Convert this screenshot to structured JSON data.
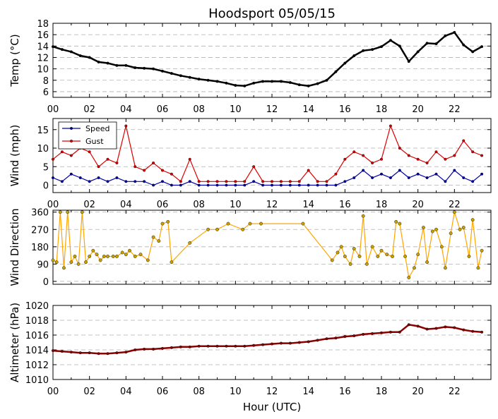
{
  "title": "Hoodsport 05/05/15",
  "xlabel": "Hour (UTC)",
  "x_tick_labels": [
    "00",
    "02",
    "04",
    "06",
    "08",
    "10",
    "12",
    "14",
    "16",
    "18",
    "20",
    "22"
  ],
  "colors": {
    "temp": "#000000",
    "speed": "#0000aa",
    "gust": "#dd0000",
    "direction": "#ffa500",
    "pressure": "#8b0000",
    "grid": "#b0b0b0"
  },
  "chart_data": [
    {
      "type": "line",
      "name": "temperature",
      "ylabel": "Temp (°C)",
      "ylim": [
        5,
        18
      ],
      "yticks": [
        6,
        8,
        10,
        12,
        14,
        16,
        18
      ],
      "xlim": [
        0,
        24
      ],
      "series": [
        {
          "name": "Temperature",
          "color": "#000000",
          "x": [
            0,
            0.5,
            1,
            1.5,
            2,
            2.5,
            3,
            3.5,
            4,
            4.5,
            5,
            5.5,
            6,
            6.5,
            7,
            7.5,
            8,
            8.5,
            9,
            9.5,
            10,
            10.5,
            11,
            11.5,
            12,
            12.5,
            13,
            13.5,
            14,
            14.5,
            15,
            15.5,
            16,
            16.5,
            17,
            17.5,
            18,
            18.5,
            19,
            19.5,
            20,
            20.5,
            21,
            21.5,
            22,
            22.5,
            23,
            23.5
          ],
          "values": [
            13.9,
            13.4,
            13.0,
            12.3,
            12.0,
            11.2,
            11.0,
            10.6,
            10.6,
            10.2,
            10.1,
            10.0,
            9.6,
            9.2,
            8.8,
            8.5,
            8.2,
            8.0,
            7.8,
            7.5,
            7.1,
            7.0,
            7.5,
            7.8,
            7.8,
            7.8,
            7.6,
            7.2,
            7.0,
            7.4,
            8.0,
            9.5,
            11.0,
            12.3,
            13.2,
            13.4,
            13.9,
            15.0,
            14.0,
            11.3,
            13.0,
            14.5,
            14.4,
            15.8,
            16.4,
            14.2,
            13.0,
            13.9
          ]
        }
      ]
    },
    {
      "type": "line",
      "name": "wind",
      "ylabel": "Wind (mph)",
      "ylim": [
        -2,
        18
      ],
      "yticks": [
        0,
        5,
        10,
        15
      ],
      "xlim": [
        0,
        24
      ],
      "legend": {
        "placement": "top-left",
        "entries": [
          "Speed",
          "Gust"
        ]
      },
      "series": [
        {
          "name": "Speed",
          "color": "#0000aa",
          "x": [
            0,
            0.5,
            1,
            1.5,
            2,
            2.5,
            3,
            3.5,
            4,
            4.5,
            5,
            5.5,
            6,
            6.5,
            7,
            7.5,
            8,
            8.5,
            9,
            9.5,
            10,
            10.5,
            11,
            11.5,
            12,
            12.5,
            13,
            13.5,
            14,
            14.5,
            15,
            15.5,
            16,
            16.5,
            17,
            17.5,
            18,
            18.5,
            19,
            19.5,
            20,
            20.5,
            21,
            21.5,
            22,
            22.5,
            23,
            23.5
          ],
          "values": [
            2,
            1,
            3,
            2,
            1,
            2,
            1,
            2,
            1,
            1,
            1,
            0,
            1,
            0,
            0,
            1,
            0,
            0,
            0,
            0,
            0,
            0,
            1,
            0,
            0,
            0,
            0,
            0,
            0,
            0,
            0,
            0,
            1,
            2,
            4,
            2,
            3,
            2,
            4,
            2,
            3,
            2,
            3,
            1,
            4,
            2,
            1,
            3
          ]
        },
        {
          "name": "Gust",
          "color": "#dd0000",
          "x": [
            0,
            0.5,
            1,
            1.5,
            2,
            2.5,
            3,
            3.5,
            4,
            4.5,
            5,
            5.5,
            6,
            6.5,
            7,
            7.5,
            8,
            8.5,
            9,
            9.5,
            10,
            10.5,
            11,
            11.5,
            12,
            12.5,
            13,
            13.5,
            14,
            14.5,
            15,
            15.5,
            16,
            16.5,
            17,
            17.5,
            18,
            18.5,
            19,
            19.5,
            20,
            20.5,
            21,
            21.5,
            22,
            22.5,
            23,
            23.5
          ],
          "values": [
            7,
            9,
            8,
            10,
            9,
            5,
            7,
            6,
            16,
            5,
            4,
            6,
            4,
            3,
            1,
            7,
            1,
            1,
            1,
            1,
            1,
            1,
            5,
            1,
            1,
            1,
            1,
            1,
            4,
            1,
            1,
            3,
            7,
            9,
            8,
            6,
            7,
            16,
            10,
            8,
            7,
            6,
            9,
            7,
            8,
            12,
            9,
            8
          ]
        }
      ]
    },
    {
      "type": "scatter",
      "name": "wind-direction",
      "ylabel": "Wind Direction",
      "ylim": [
        -15,
        370
      ],
      "yticks": [
        0,
        90,
        180,
        270,
        360
      ],
      "xlim": [
        0,
        24
      ],
      "series": [
        {
          "name": "Direction",
          "color": "#ffa500",
          "x": [
            0,
            0.2,
            0.4,
            0.6,
            0.8,
            1.0,
            1.2,
            1.4,
            1.6,
            1.8,
            2.0,
            2.2,
            2.4,
            2.6,
            2.8,
            3.0,
            3.3,
            3.5,
            3.8,
            4.0,
            4.2,
            4.5,
            4.8,
            5.2,
            5.5,
            5.8,
            6.0,
            6.3,
            6.5,
            7.5,
            8.5,
            9.0,
            9.6,
            10.4,
            10.8,
            11.4,
            13.7,
            15.3,
            15.6,
            15.8,
            16.0,
            16.3,
            16.5,
            16.8,
            17.0,
            17.2,
            17.5,
            17.8,
            18.0,
            18.3,
            18.6,
            18.8,
            19.0,
            19.3,
            19.5,
            19.8,
            20.0,
            20.3,
            20.5,
            20.8,
            21.0,
            21.3,
            21.5,
            21.8,
            22.0,
            22.3,
            22.5,
            22.8,
            23.0,
            23.3,
            23.5
          ],
          "values": [
            110,
            100,
            360,
            70,
            360,
            100,
            130,
            90,
            360,
            100,
            130,
            160,
            140,
            110,
            130,
            130,
            130,
            130,
            150,
            140,
            160,
            130,
            140,
            110,
            230,
            210,
            300,
            310,
            100,
            200,
            270,
            270,
            300,
            270,
            300,
            300,
            300,
            110,
            150,
            180,
            130,
            90,
            170,
            130,
            340,
            90,
            180,
            130,
            160,
            140,
            130,
            310,
            300,
            130,
            20,
            70,
            140,
            280,
            100,
            260,
            270,
            180,
            70,
            250,
            360,
            270,
            280,
            130,
            320,
            70,
            160
          ]
        }
      ]
    },
    {
      "type": "line",
      "name": "altimeter",
      "ylabel": "Altimeter (hPa)",
      "ylim": [
        1010,
        1020
      ],
      "yticks": [
        1010,
        1012,
        1014,
        1016,
        1018,
        1020
      ],
      "xlim": [
        0,
        24
      ],
      "series": [
        {
          "name": "Altimeter",
          "color": "#8b0000",
          "x": [
            0,
            0.5,
            1,
            1.5,
            2,
            2.5,
            3,
            3.5,
            4,
            4.5,
            5,
            5.5,
            6,
            6.5,
            7,
            7.5,
            8,
            8.5,
            9,
            9.5,
            10,
            10.5,
            11,
            11.5,
            12,
            12.5,
            13,
            13.5,
            14,
            14.5,
            15,
            15.5,
            16,
            16.5,
            17,
            17.5,
            18,
            18.5,
            19,
            19.5,
            20,
            20.5,
            21,
            21.5,
            22,
            22.5,
            23,
            23.5
          ],
          "values": [
            1013.9,
            1013.8,
            1013.7,
            1013.6,
            1013.6,
            1013.5,
            1013.5,
            1013.6,
            1013.7,
            1014.0,
            1014.1,
            1014.1,
            1014.2,
            1014.3,
            1014.4,
            1014.4,
            1014.5,
            1014.5,
            1014.5,
            1014.5,
            1014.5,
            1014.5,
            1014.6,
            1014.7,
            1014.8,
            1014.9,
            1014.9,
            1015.0,
            1015.1,
            1015.3,
            1015.5,
            1015.6,
            1015.8,
            1015.9,
            1016.1,
            1016.2,
            1016.3,
            1016.4,
            1016.4,
            1017.4,
            1017.2,
            1016.8,
            1016.9,
            1017.1,
            1017.0,
            1016.7,
            1016.5,
            1016.4
          ]
        }
      ]
    }
  ]
}
